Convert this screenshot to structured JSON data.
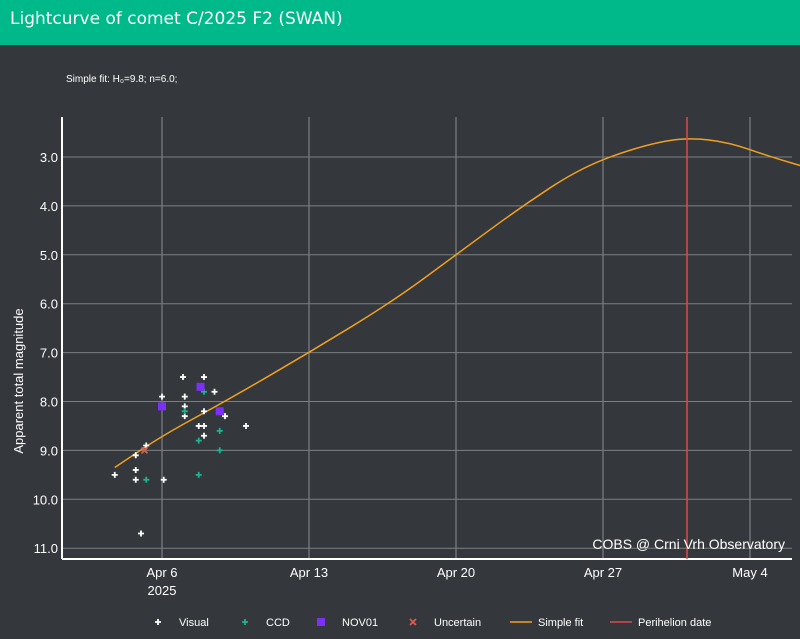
{
  "header": {
    "title": "Lightcurve of comet C/2025 F2 (SWAN)"
  },
  "colors": {
    "header_bg": "#00b98a",
    "plot_bg": "#34383d",
    "visual": "#ffffff",
    "ccd": "#1ab58e",
    "nov01": "#7b2ff7",
    "uncertain": "#e05a4e",
    "simple_fit": "#f0a020",
    "perihelion": "#e0484a",
    "grid": "#7c7f82"
  },
  "chart_data": {
    "type": "scatter",
    "annotation": "Simple fit: H₀=9.8; n=6.0;",
    "ylabel": "Apparent total magnitude",
    "y_reversed": true,
    "ylim": [
      2.2,
      11.3
    ],
    "xlim": [
      "2025-04-02",
      "2025-05-05"
    ],
    "grid": true,
    "legend_position": "bottom",
    "yticks": [
      "3.0",
      "4.0",
      "5.0",
      "6.0",
      "7.0",
      "8.0",
      "9.0",
      "10.0",
      "11.0"
    ],
    "xticks": [
      {
        "date": "2025-04-06",
        "label": "Apr 6",
        "sublabel": "2025"
      },
      {
        "date": "2025-04-13",
        "label": "Apr 13",
        "sublabel": ""
      },
      {
        "date": "2025-04-20",
        "label": "Apr 20",
        "sublabel": ""
      },
      {
        "date": "2025-04-27",
        "label": "Apr 27",
        "sublabel": ""
      },
      {
        "date": "2025-05-04",
        "label": "May 4",
        "sublabel": ""
      }
    ],
    "watermark": "COBS @ Crni Vrh Observatory",
    "series": [
      {
        "name": "Visual",
        "kind": "plus",
        "color": "#ffffff",
        "points": [
          [
            "2025-04-03T18:00",
            9.5
          ],
          [
            "2025-04-04T18:00",
            9.6
          ],
          [
            "2025-04-04T18:00",
            9.4
          ],
          [
            "2025-04-04T18:00",
            9.1
          ],
          [
            "2025-04-05T00:00",
            10.7
          ],
          [
            "2025-04-05T06:00",
            8.9
          ],
          [
            "2025-04-06T00:00",
            7.9
          ],
          [
            "2025-04-06T02:00",
            9.6
          ],
          [
            "2025-04-07T00:00",
            7.5
          ],
          [
            "2025-04-07T02:00",
            7.9
          ],
          [
            "2025-04-07T02:00",
            8.1
          ],
          [
            "2025-04-07T02:00",
            8.3
          ],
          [
            "2025-04-07T18:00",
            8.5
          ],
          [
            "2025-04-08T00:00",
            7.5
          ],
          [
            "2025-04-08T00:00",
            8.2
          ],
          [
            "2025-04-08T00:00",
            8.5
          ],
          [
            "2025-04-08T00:00",
            8.7
          ],
          [
            "2025-04-08T12:00",
            7.8
          ],
          [
            "2025-04-09T00:00",
            8.3
          ],
          [
            "2025-04-10T00:00",
            8.5
          ]
        ]
      },
      {
        "name": "CCD",
        "kind": "plus",
        "color": "#1ab58e",
        "points": [
          [
            "2025-04-05T06:00",
            9.6
          ],
          [
            "2025-04-07T02:00",
            8.2
          ],
          [
            "2025-04-07T18:00",
            9.5
          ],
          [
            "2025-04-07T18:00",
            8.8
          ],
          [
            "2025-04-08T00:00",
            7.8
          ],
          [
            "2025-04-08T18:00",
            8.6
          ],
          [
            "2025-04-08T18:00",
            9.0
          ]
        ]
      },
      {
        "name": "NOV01",
        "kind": "square",
        "color": "#7b2ff7",
        "points": [
          [
            "2025-04-06T00:00",
            8.1
          ],
          [
            "2025-04-07T20:00",
            7.7
          ],
          [
            "2025-04-08T18:00",
            8.2
          ]
        ]
      },
      {
        "name": "Uncertain",
        "kind": "cross",
        "color": "#e05a4e",
        "points": [
          [
            "2025-04-05T04:00",
            9.0
          ]
        ]
      }
    ],
    "fit": {
      "name": "Simple fit",
      "color": "#f0a020",
      "points": [
        [
          "2025-04-03T18:00",
          9.35
        ],
        [
          "2025-04-06T00:00",
          8.7
        ],
        [
          "2025-04-09T00:00",
          8.0
        ],
        [
          "2025-04-13T00:00",
          7.0
        ],
        [
          "2025-04-17T00:00",
          5.95
        ],
        [
          "2025-04-20T00:00",
          5.0
        ],
        [
          "2025-04-23T00:00",
          4.05
        ],
        [
          "2025-04-26T00:00",
          3.2
        ],
        [
          "2025-04-29T00:00",
          2.75
        ],
        [
          "2025-05-01T00:00",
          2.6
        ],
        [
          "2025-05-03T00:00",
          2.7
        ],
        [
          "2025-05-05T00:00",
          3.0
        ],
        [
          "2025-05-07T00:00",
          3.25
        ]
      ]
    },
    "perihelion": {
      "name": "Perihelion date",
      "date": "2025-05-01T00:00",
      "color": "#e0484a"
    }
  }
}
